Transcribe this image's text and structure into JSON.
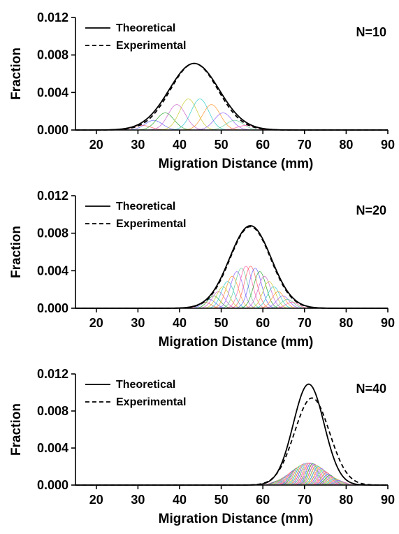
{
  "chart_data": [
    {
      "type": "line",
      "panel_label": "N=10",
      "xlabel": "Migration Distance (mm)",
      "ylabel": "Fraction",
      "xlim": [
        15,
        90
      ],
      "ylim": [
        0,
        0.012
      ],
      "xticks": [
        "20",
        "30",
        "40",
        "50",
        "60",
        "70",
        "80",
        "90"
      ],
      "yticks": [
        "0.000",
        "0.004",
        "0.008",
        "0.012"
      ],
      "legend": {
        "position": "top-left",
        "entries": [
          "Theoretical",
          "Experimental"
        ]
      },
      "series": [
        {
          "name": "Theoretical",
          "style": "solid",
          "peak_x": 43.5,
          "peak_y": 0.0071,
          "width": 6.0
        },
        {
          "name": "Experimental",
          "style": "dashed",
          "peak_x": 43.5,
          "peak_y": 0.0071,
          "width": 5.7
        }
      ],
      "components": {
        "count": 10,
        "start_x": 31,
        "end_x": 56,
        "width": 2.1,
        "peak_max": 0.0034
      }
    },
    {
      "type": "line",
      "panel_label": "N=20",
      "xlabel": "Migration Distance (mm)",
      "ylabel": "Fraction",
      "xlim": [
        15,
        90
      ],
      "ylim": [
        0,
        0.012
      ],
      "xticks": [
        "20",
        "30",
        "40",
        "50",
        "60",
        "70",
        "80",
        "90"
      ],
      "yticks": [
        "0.000",
        "0.004",
        "0.008",
        "0.012"
      ],
      "legend": {
        "position": "top-left",
        "entries": [
          "Theoretical",
          "Experimental"
        ]
      },
      "series": [
        {
          "name": "Theoretical",
          "style": "solid",
          "peak_x": 57,
          "peak_y": 0.0088,
          "width": 5.0
        },
        {
          "name": "Experimental",
          "style": "dashed",
          "peak_x": 57,
          "peak_y": 0.0087,
          "width": 4.9
        }
      ],
      "components": {
        "count": 20,
        "start_x": 46,
        "end_x": 67,
        "width": 1.5,
        "peak_max": 0.0045
      }
    },
    {
      "type": "line",
      "panel_label": "N=40",
      "xlabel": "Migration Distance (mm)",
      "ylabel": "Fraction",
      "xlim": [
        15,
        90
      ],
      "ylim": [
        0,
        0.012
      ],
      "xticks": [
        "20",
        "30",
        "40",
        "50",
        "60",
        "70",
        "80",
        "90"
      ],
      "yticks": [
        "0.000",
        "0.004",
        "0.008",
        "0.012"
      ],
      "legend": {
        "position": "top-left",
        "entries": [
          "Theoretical",
          "Experimental"
        ]
      },
      "series": [
        {
          "name": "Theoretical",
          "style": "solid",
          "peak_x": 71,
          "peak_y": 0.0109,
          "width": 3.7
        },
        {
          "name": "Experimental",
          "style": "dashed",
          "peak_x": 71.8,
          "peak_y": 0.0094,
          "width": 4.2
        }
      ],
      "components": {
        "count": 40,
        "start_x": 63,
        "end_x": 79,
        "width": 1.2,
        "peak_max": 0.0024
      }
    }
  ],
  "colors": {
    "axis": "#000000",
    "components": [
      "#ff6666",
      "#6666ff",
      "#33aa33",
      "#cc66cc",
      "#cccc33",
      "#33cccc",
      "#ff9933",
      "#9966ff",
      "#66cc99",
      "#ff66aa"
    ]
  }
}
